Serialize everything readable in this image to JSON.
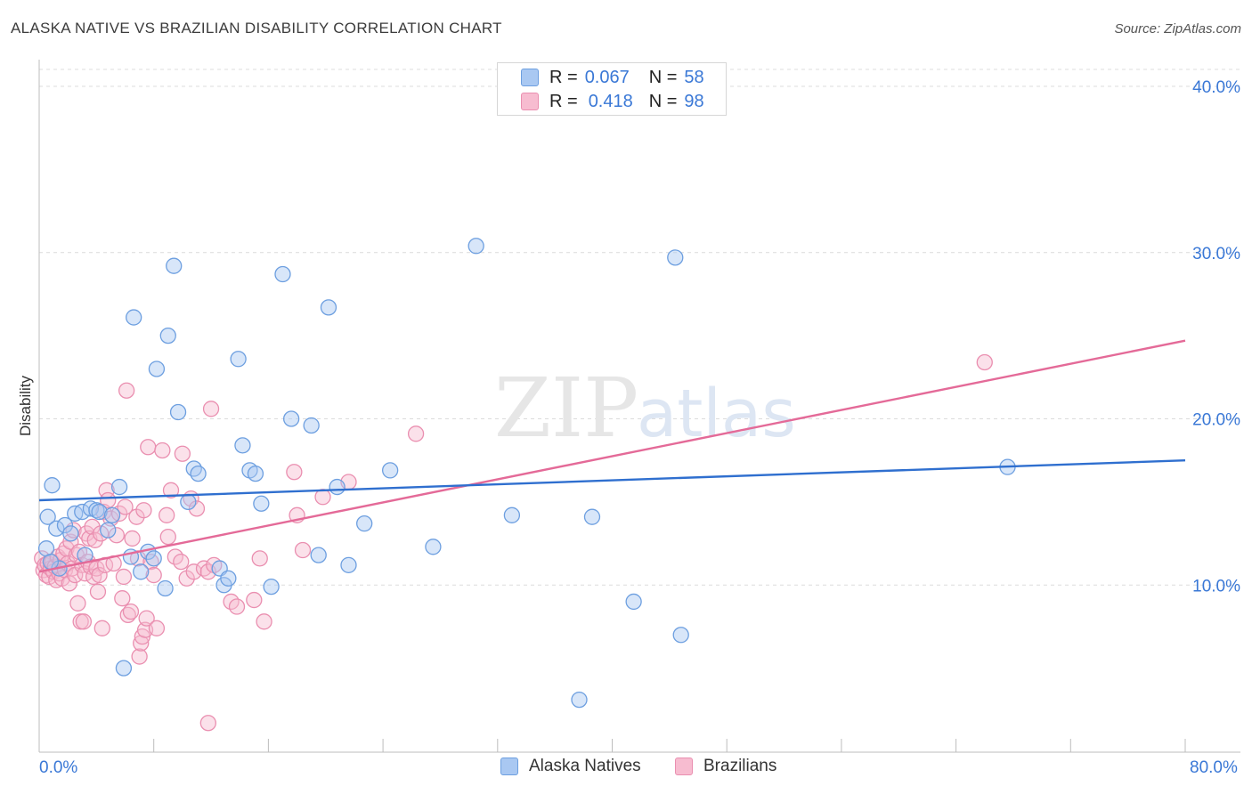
{
  "header": {
    "title": "ALASKA NATIVE VS BRAZILIAN DISABILITY CORRELATION CHART",
    "source": "Source: ZipAtlas.com"
  },
  "watermark": {
    "zip": "ZIP",
    "atlas": "atlas"
  },
  "legend": {
    "r_label": "R =",
    "n_label": "N =",
    "series": [
      {
        "r": "0.067",
        "n": "58"
      },
      {
        "r": "0.418",
        "n": "98"
      }
    ]
  },
  "colors": {
    "blue_fill": "#a9c8f2",
    "blue_stroke": "#6d9fe0",
    "blue_line": "#2f6fcf",
    "pink_fill": "#f7bcd0",
    "pink_stroke": "#ea8fb0",
    "pink_line": "#e46a98",
    "axis_label": "#3a78d6"
  },
  "chart_data": {
    "type": "scatter",
    "title": "ALASKA NATIVE VS BRAZILIAN DISABILITY CORRELATION CHART",
    "xlabel": "",
    "ylabel": "Disability",
    "xlim": [
      0,
      80
    ],
    "ylim": [
      0,
      40
    ],
    "x_tick_labels": [
      "0.0%",
      "80.0%"
    ],
    "y_ticks": [
      10,
      20,
      30,
      40
    ],
    "y_tick_labels": [
      "10.0%",
      "20.0%",
      "30.0%",
      "40.0%"
    ],
    "grid": true,
    "legend_position": "top-center",
    "series": [
      {
        "name": "Alaska Natives",
        "r": 0.067,
        "n": 58,
        "trend": [
          [
            0,
            15.1
          ],
          [
            80,
            17.5
          ]
        ],
        "points": [
          [
            0.5,
            12.2
          ],
          [
            0.6,
            14.1
          ],
          [
            0.9,
            16.0
          ],
          [
            1.2,
            13.4
          ],
          [
            1.8,
            13.6
          ],
          [
            2.2,
            13.1
          ],
          [
            2.5,
            14.3
          ],
          [
            3.0,
            14.4
          ],
          [
            3.6,
            14.6
          ],
          [
            4.0,
            14.5
          ],
          [
            4.2,
            14.4
          ],
          [
            4.8,
            13.3
          ],
          [
            5.1,
            14.2
          ],
          [
            5.6,
            15.9
          ],
          [
            6.4,
            11.7
          ],
          [
            6.6,
            26.1
          ],
          [
            7.1,
            10.8
          ],
          [
            7.6,
            12.0
          ],
          [
            8.0,
            11.6
          ],
          [
            8.2,
            23.0
          ],
          [
            8.8,
            9.8
          ],
          [
            9.0,
            25.0
          ],
          [
            9.4,
            29.2
          ],
          [
            9.7,
            20.4
          ],
          [
            10.4,
            15.0
          ],
          [
            10.8,
            17.0
          ],
          [
            11.1,
            16.7
          ],
          [
            12.6,
            11.0
          ],
          [
            12.9,
            10.0
          ],
          [
            13.2,
            10.4
          ],
          [
            13.9,
            23.6
          ],
          [
            14.2,
            18.4
          ],
          [
            14.7,
            16.9
          ],
          [
            15.1,
            16.7
          ],
          [
            15.5,
            14.9
          ],
          [
            16.2,
            9.9
          ],
          [
            17.0,
            28.7
          ],
          [
            17.6,
            20.0
          ],
          [
            19.0,
            19.6
          ],
          [
            19.5,
            11.8
          ],
          [
            20.2,
            26.7
          ],
          [
            20.8,
            15.9
          ],
          [
            21.6,
            11.2
          ],
          [
            22.7,
            13.7
          ],
          [
            24.5,
            16.9
          ],
          [
            27.5,
            12.3
          ],
          [
            30.5,
            30.4
          ],
          [
            33.0,
            14.2
          ],
          [
            37.7,
            3.1
          ],
          [
            38.6,
            14.1
          ],
          [
            41.5,
            9.0
          ],
          [
            44.4,
            29.7
          ],
          [
            44.8,
            7.0
          ],
          [
            67.6,
            17.1
          ],
          [
            5.9,
            5.0
          ],
          [
            3.2,
            11.8
          ],
          [
            1.4,
            11.0
          ],
          [
            0.8,
            11.4
          ]
        ]
      },
      {
        "name": "Brazilians",
        "r": 0.418,
        "n": 98,
        "trend": [
          [
            0,
            10.8
          ],
          [
            80,
            24.7
          ]
        ],
        "points": [
          [
            0.2,
            11.6
          ],
          [
            0.3,
            10.9
          ],
          [
            0.4,
            11.2
          ],
          [
            0.5,
            10.6
          ],
          [
            0.6,
            11.3
          ],
          [
            0.7,
            10.5
          ],
          [
            0.8,
            11.0
          ],
          [
            0.9,
            11.4
          ],
          [
            1.0,
            10.8
          ],
          [
            1.1,
            11.1
          ],
          [
            1.2,
            10.3
          ],
          [
            1.3,
            11.7
          ],
          [
            1.4,
            10.7
          ],
          [
            1.5,
            11.5
          ],
          [
            1.6,
            10.4
          ],
          [
            1.7,
            11.9
          ],
          [
            1.8,
            10.9
          ],
          [
            1.9,
            12.2
          ],
          [
            2.0,
            11.3
          ],
          [
            2.1,
            10.1
          ],
          [
            2.2,
            12.6
          ],
          [
            2.3,
            11.0
          ],
          [
            2.4,
            13.3
          ],
          [
            2.5,
            10.6
          ],
          [
            2.6,
            11.8
          ],
          [
            2.7,
            8.9
          ],
          [
            2.8,
            12.0
          ],
          [
            2.9,
            7.8
          ],
          [
            3.0,
            11.2
          ],
          [
            3.1,
            7.8
          ],
          [
            3.2,
            10.7
          ],
          [
            3.3,
            13.1
          ],
          [
            3.4,
            11.4
          ],
          [
            3.5,
            12.8
          ],
          [
            3.6,
            11.1
          ],
          [
            3.7,
            13.5
          ],
          [
            3.8,
            10.5
          ],
          [
            3.9,
            12.7
          ],
          [
            4.0,
            11.0
          ],
          [
            4.1,
            9.6
          ],
          [
            4.2,
            10.6
          ],
          [
            4.3,
            13.1
          ],
          [
            4.4,
            7.4
          ],
          [
            4.5,
            14.4
          ],
          [
            4.6,
            11.2
          ],
          [
            4.7,
            15.7
          ],
          [
            4.8,
            15.1
          ],
          [
            5.0,
            14.0
          ],
          [
            5.2,
            11.3
          ],
          [
            5.4,
            13.0
          ],
          [
            5.6,
            14.3
          ],
          [
            5.8,
            9.2
          ],
          [
            5.9,
            10.5
          ],
          [
            6.0,
            14.7
          ],
          [
            6.1,
            21.7
          ],
          [
            6.2,
            8.2
          ],
          [
            6.4,
            8.4
          ],
          [
            6.5,
            12.8
          ],
          [
            6.8,
            14.1
          ],
          [
            6.9,
            11.6
          ],
          [
            7.0,
            5.7
          ],
          [
            7.1,
            6.5
          ],
          [
            7.2,
            6.9
          ],
          [
            7.3,
            14.5
          ],
          [
            7.4,
            7.3
          ],
          [
            7.5,
            8.0
          ],
          [
            7.6,
            18.3
          ],
          [
            7.8,
            11.4
          ],
          [
            8.2,
            7.4
          ],
          [
            8.6,
            18.1
          ],
          [
            8.9,
            14.2
          ],
          [
            9.0,
            12.9
          ],
          [
            9.2,
            15.7
          ],
          [
            9.5,
            11.7
          ],
          [
            9.9,
            11.4
          ],
          [
            10.0,
            17.9
          ],
          [
            10.3,
            10.4
          ],
          [
            10.6,
            15.2
          ],
          [
            10.8,
            10.8
          ],
          [
            11.0,
            14.6
          ],
          [
            11.5,
            11.0
          ],
          [
            11.8,
            10.8
          ],
          [
            12.0,
            20.6
          ],
          [
            12.2,
            11.2
          ],
          [
            13.4,
            9.0
          ],
          [
            13.8,
            8.7
          ],
          [
            15.0,
            9.1
          ],
          [
            15.4,
            11.6
          ],
          [
            15.7,
            7.8
          ],
          [
            17.8,
            16.8
          ],
          [
            18.0,
            14.2
          ],
          [
            18.4,
            12.1
          ],
          [
            19.8,
            15.3
          ],
          [
            21.6,
            16.2
          ],
          [
            26.3,
            19.1
          ],
          [
            66.0,
            23.4
          ],
          [
            11.8,
            1.7
          ],
          [
            8.0,
            10.6
          ]
        ]
      }
    ]
  }
}
